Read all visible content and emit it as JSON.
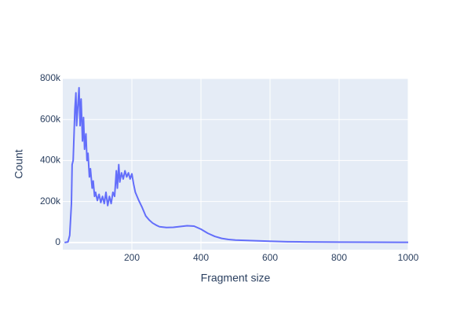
{
  "chart_data": {
    "type": "line",
    "x_label": "Fragment size",
    "y_label": "Count",
    "x": [
      5,
      15,
      20,
      25,
      27,
      30,
      35,
      38,
      40,
      43,
      47,
      50,
      53,
      57,
      60,
      63,
      67,
      70,
      73,
      77,
      80,
      85,
      88,
      92,
      95,
      100,
      105,
      110,
      115,
      120,
      125,
      130,
      135,
      140,
      145,
      150,
      155,
      158,
      162,
      165,
      170,
      175,
      180,
      185,
      190,
      195,
      200,
      205,
      210,
      220,
      230,
      240,
      250,
      260,
      270,
      280,
      300,
      320,
      340,
      360,
      380,
      400,
      420,
      440,
      460,
      480,
      500,
      550,
      600,
      650,
      700,
      800,
      900,
      1000
    ],
    "series": [
      {
        "name": "Count",
        "color": "#636efa",
        "values": [
          0,
          3000,
          35000,
          190000,
          380000,
          400000,
          650000,
          730000,
          570000,
          650000,
          755000,
          570000,
          700000,
          495000,
          610000,
          455000,
          530000,
          400000,
          435000,
          320000,
          360000,
          265000,
          300000,
          225000,
          245000,
          205000,
          235000,
          195000,
          225000,
          190000,
          245000,
          180000,
          225000,
          190000,
          245000,
          225000,
          350000,
          265000,
          380000,
          295000,
          340000,
          310000,
          350000,
          320000,
          340000,
          310000,
          335000,
          285000,
          245000,
          205000,
          170000,
          130000,
          110000,
          95000,
          85000,
          77000,
          73000,
          74000,
          78000,
          82000,
          80000,
          65000,
          45000,
          30000,
          20000,
          15000,
          12000,
          9000,
          6000,
          4000,
          3000,
          2000,
          1500,
          1000
        ]
      }
    ],
    "xlim": [
      0,
      1000
    ],
    "xticks": [
      200,
      400,
      600,
      800,
      1000
    ],
    "ylim": [
      -35000,
      800000
    ],
    "yticks": [
      0,
      {
        "value": 200000,
        "label": "200k"
      },
      {
        "value": 400000,
        "label": "400k"
      },
      {
        "value": 600000,
        "label": "600k"
      },
      {
        "value": 800000,
        "label": "800k"
      }
    ],
    "grid": true
  }
}
